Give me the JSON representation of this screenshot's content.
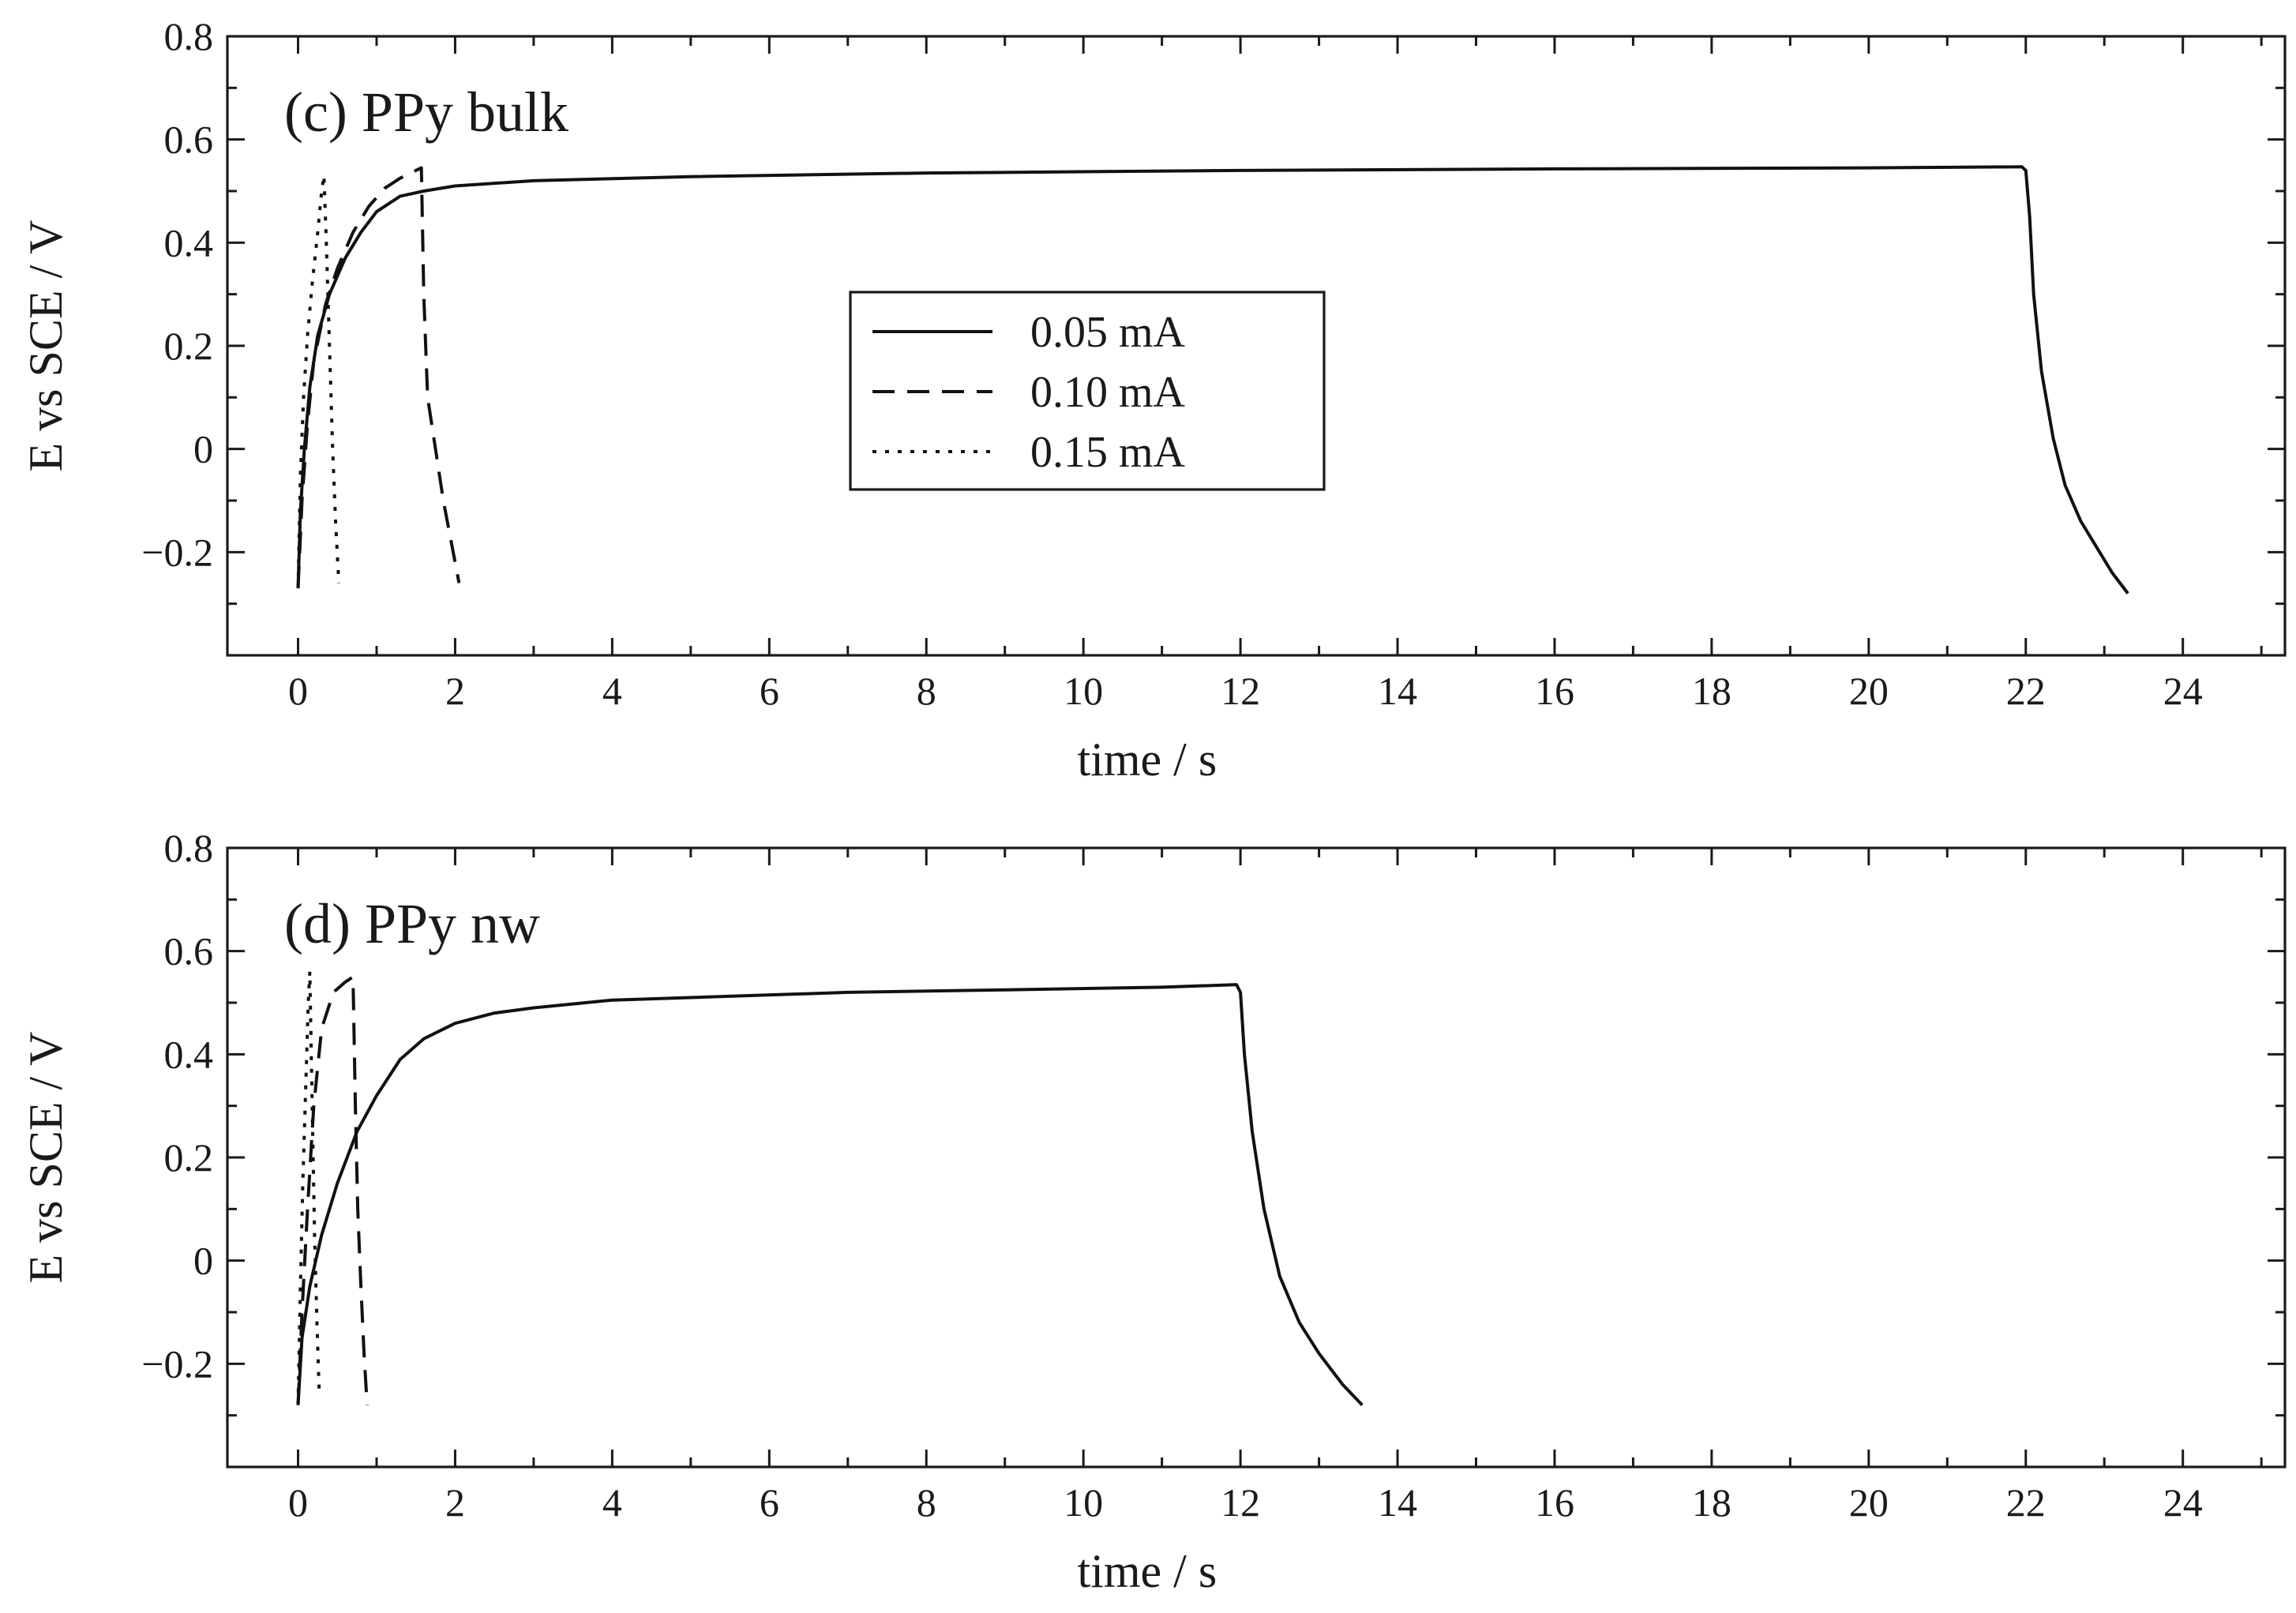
{
  "chart_data": [
    {
      "type": "line",
      "panel_label": "(c) PPy bulk",
      "xlabel": "time / s",
      "ylabel": "E vs SCE / V",
      "xlim": [
        -0.9,
        25.3
      ],
      "ylim": [
        -0.4,
        0.8
      ],
      "xticks": [
        0,
        2,
        4,
        6,
        8,
        10,
        12,
        14,
        16,
        18,
        20,
        22,
        24
      ],
      "yticks": [
        -0.2,
        0,
        0.2,
        0.4,
        0.6,
        0.8
      ],
      "ytick_labels": [
        "−0.2",
        "0",
        "0.2",
        "0.4",
        "0.6",
        "0.8"
      ],
      "legend": {
        "position": "center",
        "entries": [
          "0.05 mA",
          "0.10 mA",
          "0.15 mA"
        ]
      },
      "series": [
        {
          "name": "0.05 mA",
          "style": "solid",
          "points": [
            [
              0.0,
              -0.27
            ],
            [
              0.03,
              -0.12
            ],
            [
              0.08,
              0.0
            ],
            [
              0.15,
              0.12
            ],
            [
              0.25,
              0.22
            ],
            [
              0.4,
              0.3
            ],
            [
              0.6,
              0.37
            ],
            [
              0.8,
              0.42
            ],
            [
              1.0,
              0.46
            ],
            [
              1.3,
              0.49
            ],
            [
              1.6,
              0.5
            ],
            [
              2.0,
              0.51
            ],
            [
              3.0,
              0.52
            ],
            [
              5.0,
              0.528
            ],
            [
              8.0,
              0.535
            ],
            [
              12.0,
              0.54
            ],
            [
              16.0,
              0.543
            ],
            [
              20.0,
              0.545
            ],
            [
              21.95,
              0.547
            ],
            [
              22.0,
              0.54
            ],
            [
              22.05,
              0.45
            ],
            [
              22.1,
              0.3
            ],
            [
              22.2,
              0.15
            ],
            [
              22.35,
              0.02
            ],
            [
              22.5,
              -0.07
            ],
            [
              22.7,
              -0.14
            ],
            [
              22.9,
              -0.19
            ],
            [
              23.1,
              -0.24
            ],
            [
              23.3,
              -0.28
            ]
          ]
        },
        {
          "name": "0.10 mA",
          "style": "dashed",
          "points": [
            [
              0.0,
              -0.27
            ],
            [
              0.05,
              -0.1
            ],
            [
              0.12,
              0.05
            ],
            [
              0.2,
              0.17
            ],
            [
              0.35,
              0.28
            ],
            [
              0.5,
              0.35
            ],
            [
              0.7,
              0.42
            ],
            [
              0.9,
              0.47
            ],
            [
              1.1,
              0.505
            ],
            [
              1.3,
              0.525
            ],
            [
              1.5,
              0.54
            ],
            [
              1.57,
              0.545
            ],
            [
              1.6,
              0.3
            ],
            [
              1.65,
              0.1
            ],
            [
              1.75,
              0.0
            ],
            [
              1.85,
              -0.1
            ],
            [
              1.95,
              -0.18
            ],
            [
              2.05,
              -0.26
            ]
          ]
        },
        {
          "name": "0.15 mA",
          "style": "dotted",
          "points": [
            [
              0.0,
              -0.27
            ],
            [
              0.03,
              -0.05
            ],
            [
              0.07,
              0.1
            ],
            [
              0.12,
              0.22
            ],
            [
              0.18,
              0.32
            ],
            [
              0.25,
              0.42
            ],
            [
              0.3,
              0.5
            ],
            [
              0.33,
              0.53
            ],
            [
              0.36,
              0.4
            ],
            [
              0.4,
              0.2
            ],
            [
              0.44,
              0.0
            ],
            [
              0.48,
              -0.15
            ],
            [
              0.52,
              -0.26
            ]
          ]
        }
      ]
    },
    {
      "type": "line",
      "panel_label": "(d) PPy nw",
      "xlabel": "time / s",
      "ylabel": "E vs SCE / V",
      "xlim": [
        -0.9,
        25.3
      ],
      "ylim": [
        -0.4,
        0.8
      ],
      "xticks": [
        0,
        2,
        4,
        6,
        8,
        10,
        12,
        14,
        16,
        18,
        20,
        22,
        24
      ],
      "yticks": [
        -0.2,
        0,
        0.2,
        0.4,
        0.6,
        0.8
      ],
      "ytick_labels": [
        "−0.2",
        "0",
        "0.2",
        "0.4",
        "0.6",
        "0.8"
      ],
      "series": [
        {
          "name": "0.05 mA",
          "style": "solid",
          "points": [
            [
              0.0,
              -0.28
            ],
            [
              0.05,
              -0.15
            ],
            [
              0.15,
              -0.05
            ],
            [
              0.3,
              0.05
            ],
            [
              0.5,
              0.15
            ],
            [
              0.75,
              0.25
            ],
            [
              1.0,
              0.32
            ],
            [
              1.3,
              0.39
            ],
            [
              1.6,
              0.43
            ],
            [
              2.0,
              0.46
            ],
            [
              2.5,
              0.48
            ],
            [
              3.0,
              0.49
            ],
            [
              4.0,
              0.505
            ],
            [
              5.0,
              0.51
            ],
            [
              7.0,
              0.52
            ],
            [
              9.0,
              0.525
            ],
            [
              11.0,
              0.53
            ],
            [
              11.95,
              0.535
            ],
            [
              12.0,
              0.52
            ],
            [
              12.05,
              0.4
            ],
            [
              12.15,
              0.25
            ],
            [
              12.3,
              0.1
            ],
            [
              12.5,
              -0.03
            ],
            [
              12.75,
              -0.12
            ],
            [
              13.0,
              -0.18
            ],
            [
              13.3,
              -0.24
            ],
            [
              13.55,
              -0.28
            ]
          ]
        },
        {
          "name": "0.10 mA",
          "style": "dashed",
          "points": [
            [
              0.0,
              -0.28
            ],
            [
              0.05,
              -0.1
            ],
            [
              0.12,
              0.1
            ],
            [
              0.2,
              0.3
            ],
            [
              0.3,
              0.45
            ],
            [
              0.45,
              0.52
            ],
            [
              0.6,
              0.54
            ],
            [
              0.7,
              0.55
            ],
            [
              0.73,
              0.3
            ],
            [
              0.76,
              0.1
            ],
            [
              0.8,
              -0.05
            ],
            [
              0.84,
              -0.18
            ],
            [
              0.88,
              -0.28
            ]
          ]
        },
        {
          "name": "0.15 mA",
          "style": "dotted",
          "points": [
            [
              0.0,
              -0.28
            ],
            [
              0.03,
              -0.05
            ],
            [
              0.06,
              0.15
            ],
            [
              0.1,
              0.35
            ],
            [
              0.13,
              0.5
            ],
            [
              0.15,
              0.56
            ],
            [
              0.18,
              0.3
            ],
            [
              0.21,
              0.05
            ],
            [
              0.24,
              -0.12
            ],
            [
              0.27,
              -0.26
            ]
          ]
        }
      ]
    }
  ]
}
